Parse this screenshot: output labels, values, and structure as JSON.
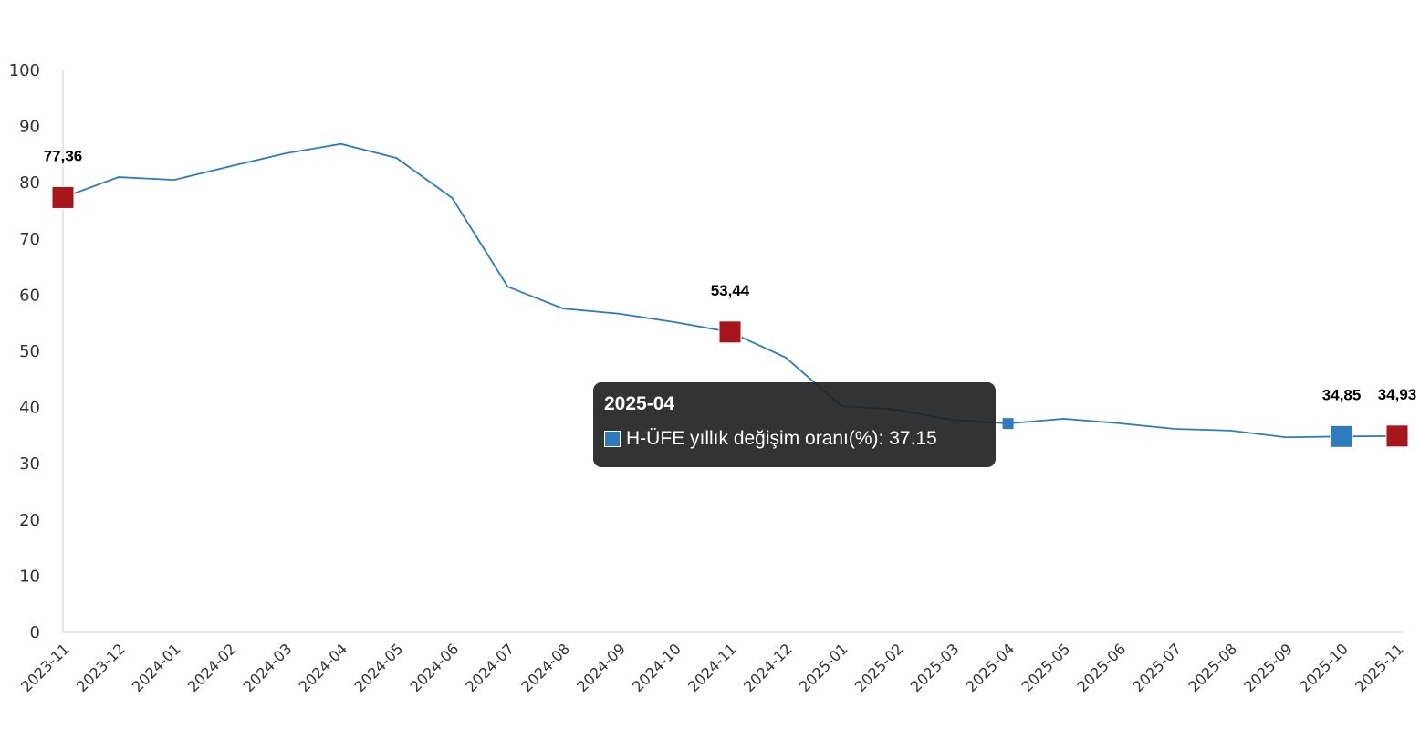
{
  "chart_data": {
    "type": "line",
    "title": "",
    "xlabel": "",
    "ylabel": "",
    "ylim": [
      0,
      100
    ],
    "yticks": [
      0,
      10,
      20,
      30,
      40,
      50,
      60,
      70,
      80,
      90,
      100
    ],
    "grid": false,
    "categories": [
      "2023-11",
      "2023-12",
      "2024-01",
      "2024-02",
      "2024-03",
      "2024-04",
      "2024-05",
      "2024-06",
      "2024-07",
      "2024-08",
      "2024-09",
      "2024-10",
      "2024-11",
      "2024-12",
      "2025-01",
      "2025-02",
      "2025-03",
      "2025-04",
      "2025-05",
      "2025-06",
      "2025-07",
      "2025-08",
      "2025-09",
      "2025-10",
      "2025-11"
    ],
    "series": [
      {
        "name": "H-ÜFE yıllık değişim oranı(%)",
        "color": "#2e7bbd",
        "values": [
          77.36,
          81.0,
          80.5,
          82.9,
          85.2,
          86.9,
          84.4,
          77.3,
          61.5,
          57.6,
          56.7,
          55.2,
          53.44,
          48.9,
          40.3,
          39.6,
          37.8,
          37.15,
          38.0,
          37.2,
          36.2,
          35.9,
          34.7,
          34.85,
          34.93
        ]
      }
    ],
    "highlighted_points": [
      {
        "index": 0,
        "label": "77,36",
        "color": "#a8151b"
      },
      {
        "index": 12,
        "label": "53,44",
        "color": "#a8151b"
      },
      {
        "index": 23,
        "label": "34,85",
        "color": "#2e7bbd"
      },
      {
        "index": 24,
        "label": "34,93",
        "color": "#a8151b"
      }
    ],
    "tooltip": {
      "index": 17,
      "title": "2025-04",
      "text": "H-ÜFE yıllık değişim oranı(%): 37.15"
    }
  }
}
